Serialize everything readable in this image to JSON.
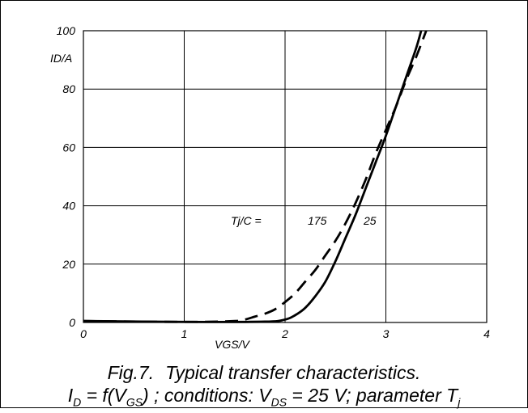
{
  "chart_data": {
    "type": "line",
    "xlabel": "VGS/V",
    "ylabel": "ID/A",
    "xlim": [
      0,
      4
    ],
    "ylim": [
      0,
      100
    ],
    "x_ticks": [
      "0",
      "1",
      "2",
      "3",
      "4"
    ],
    "y_ticks": [
      "0",
      "20",
      "40",
      "60",
      "80",
      "100"
    ],
    "grid": true,
    "legend_title": "Tj/C =",
    "series": [
      {
        "name": "25",
        "line_style": "solid",
        "points": [
          [
            0,
            0.5
          ],
          [
            1,
            0.2
          ],
          [
            1.8,
            0.3
          ],
          [
            2,
            1
          ],
          [
            2.1,
            2.5
          ],
          [
            2.2,
            5
          ],
          [
            2.3,
            9
          ],
          [
            2.4,
            14
          ],
          [
            2.5,
            21
          ],
          [
            2.6,
            29
          ],
          [
            2.7,
            37
          ],
          [
            2.8,
            46
          ],
          [
            2.9,
            55
          ],
          [
            3.0,
            64
          ],
          [
            3.1,
            74
          ],
          [
            3.2,
            84
          ],
          [
            3.3,
            94
          ],
          [
            3.35,
            100
          ]
        ]
      },
      {
        "name": "175",
        "line_style": "dashed",
        "points": [
          [
            0,
            0.5
          ],
          [
            1,
            0.2
          ],
          [
            1.5,
            0.5
          ],
          [
            1.6,
            1
          ],
          [
            1.7,
            2
          ],
          [
            1.8,
            3
          ],
          [
            1.9,
            4.5
          ],
          [
            2.0,
            7
          ],
          [
            2.1,
            10
          ],
          [
            2.2,
            14
          ],
          [
            2.3,
            18
          ],
          [
            2.4,
            23
          ],
          [
            2.5,
            28
          ],
          [
            2.6,
            34
          ],
          [
            2.7,
            41
          ],
          [
            2.8,
            49
          ],
          [
            2.9,
            58
          ],
          [
            3.0,
            66
          ],
          [
            3.1,
            74
          ],
          [
            3.2,
            83
          ],
          [
            3.3,
            91
          ],
          [
            3.4,
            100
          ]
        ]
      }
    ],
    "caption": {
      "fig": "Fig.7.",
      "title": "Typical transfer characteristics.",
      "line2": {
        "I": "I",
        "D": "D",
        "eq": " = f(V",
        "GS": "GS",
        "cond": ") ; conditions: V",
        "DS": "DS",
        "param": " = 25 V; parameter T",
        "j": "j"
      }
    }
  },
  "colors": {
    "line": "#000000",
    "grid": "#000000",
    "background": "#ffffff"
  }
}
